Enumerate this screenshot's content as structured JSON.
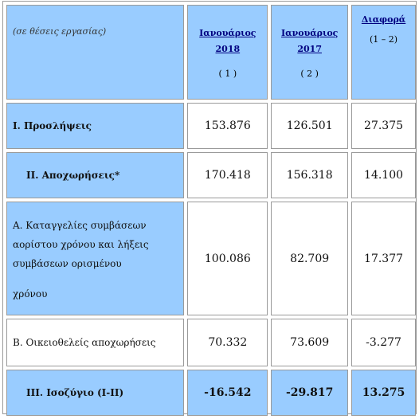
{
  "header": {
    "unit_note": "(σε θέσεις εργασίας)",
    "columns": [
      {
        "title_line1": "Ιανουάριος",
        "title_line2": "2018",
        "number": "( 1 )"
      },
      {
        "title_line1": "Ιανουάριος",
        "title_line2": "2017",
        "number": "( 2 )"
      },
      {
        "title_line1": "Διαφορά",
        "title_line2": "",
        "number": "(1 – 2)"
      }
    ]
  },
  "rows": [
    {
      "label": "Ι. Προσλήψεις",
      "values": [
        "153.876",
        "126.501",
        "27.375"
      ]
    },
    {
      "label": "ΙΙ. Αποχωρήσεις*",
      "values": [
        "170.418",
        "156.318",
        "14.100"
      ]
    },
    {
      "label_lines": [
        "Α. Καταγγελίες συμβάσεων",
        "αορίστου χρόνου  και λήξεις",
        "συμβάσεων ορισμένου",
        "χρόνου"
      ],
      "values": [
        "100.086",
        "82.709",
        "17.377"
      ]
    },
    {
      "label": "Β. Οικειοθελείς  αποχωρήσεις",
      "values": [
        "70.332",
        "73.609",
        "-3.277"
      ]
    },
    {
      "label": "ΙΙΙ. Ισοζύγιο (Ι-ΙΙ)",
      "values": [
        "-16.542",
        "-29.817",
        "13.275"
      ]
    }
  ]
}
